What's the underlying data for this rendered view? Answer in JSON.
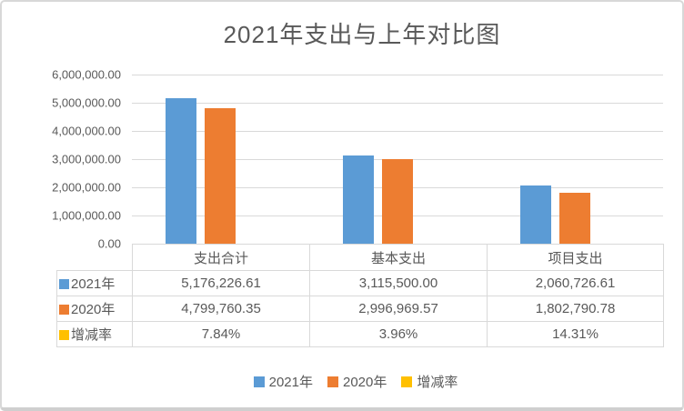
{
  "chart_data": {
    "type": "bar",
    "title": "2021年支出与上年对比图",
    "categories": [
      "支出合计",
      "基本支出",
      "项目支出"
    ],
    "series": [
      {
        "name": "2021年",
        "color": "#5B9BD5",
        "values": [
          5176226.61,
          3115500.0,
          2060726.61
        ],
        "labels": [
          "5,176,226.61",
          "3,115,500.00",
          "2,060,726.61"
        ]
      },
      {
        "name": "2020年",
        "color": "#ED7D31",
        "values": [
          4799760.35,
          2996969.57,
          1802790.78
        ],
        "labels": [
          "4,799,760.35",
          "2,996,969.57",
          "1,802,790.78"
        ]
      },
      {
        "name": "增减率",
        "color": "#FFC000",
        "values": [
          0.0784,
          0.0396,
          0.1431
        ],
        "labels": [
          "7.84%",
          "3.96%",
          "14.31%"
        ]
      }
    ],
    "ylim": [
      0,
      6000000
    ],
    "y_ticks": [
      "6,000,000.00",
      "5,000,000.00",
      "4,000,000.00",
      "3,000,000.00",
      "2,000,000.00",
      "1,000,000.00",
      "0.00"
    ],
    "grid": true,
    "legend_position": "bottom",
    "data_table_shown": true,
    "colors": {
      "grid": "#d9d9d9",
      "text": "#595959",
      "table_border": "#d9d9d9"
    }
  }
}
